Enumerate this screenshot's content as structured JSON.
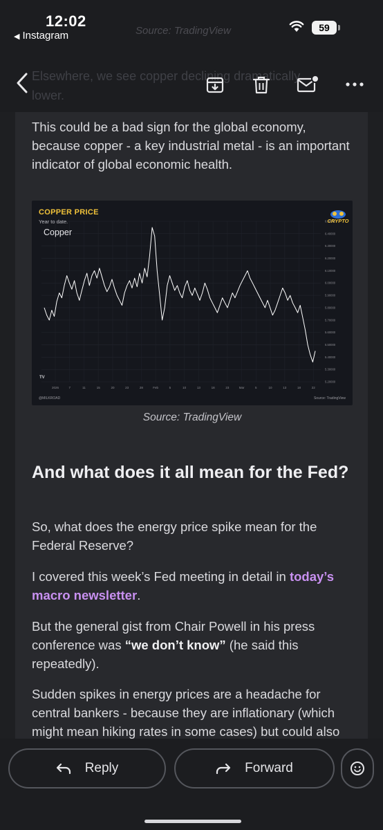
{
  "status_bar": {
    "time": "12:02",
    "back_app": "Instagram",
    "battery": "59",
    "wifi_icon": "wifi-icon"
  },
  "faded_text": {
    "top": "Source: TradingView",
    "line1": "Elsewhere, we see copper declining dramatically",
    "line2": "lower."
  },
  "toolbar": {
    "icons": [
      "back-arrow-icon",
      "archive-icon",
      "trash-icon",
      "mail-unread-icon",
      "more-icon"
    ]
  },
  "article": {
    "p1": "This could be a bad sign for the global economy, because copper - a key industrial metal - is an important indicator of global economic health.",
    "caption": "Source: TradingView",
    "heading": "And what does it all mean for the Fed?",
    "p2": "So, what does the energy price spike mean for the Federal Reserve?",
    "p3_prefix": "I covered this week’s Fed meeting in detail in ",
    "p3_link": "today’s macro newsletter",
    "p3_suffix": ".",
    "p4_prefix": "But the general gist from Chair Powell in his press conference was ",
    "p4_strong": "“we don’t know”",
    "p4_suffix": " (he said this repeatedly).",
    "p5": "Sudden spikes in energy prices are a headache for central bankers - because they are inflationary (which might mean hiking rates in some cases) but could also constrain offers... concern to central"
  },
  "chart": {
    "title": "COPPER PRICE",
    "subtitle": "Year to date.",
    "series_label": "Copper",
    "logo_text": "CRYPTO",
    "handle": "@MILKROAD",
    "source": "Source: TradingView",
    "tv_mark": "TV"
  },
  "chart_data": {
    "type": "line",
    "title": "COPPER PRICE",
    "subtitle": "Year to date.",
    "series": [
      {
        "name": "Copper",
        "values": [
          5.8,
          5.74,
          5.7,
          5.78,
          5.73,
          5.85,
          5.92,
          5.88,
          5.98,
          6.06,
          6.0,
          5.95,
          6.02,
          5.92,
          5.86,
          5.94,
          6.02,
          6.08,
          5.98,
          6.06,
          6.1,
          6.04,
          6.12,
          6.05,
          5.98,
          5.93,
          5.97,
          6.03,
          5.96,
          5.9,
          5.86,
          5.82,
          5.92,
          5.98,
          6.02,
          5.96,
          6.04,
          5.97,
          6.08,
          6.0,
          6.12,
          6.05,
          6.22,
          6.45,
          6.38,
          6.1,
          5.9,
          5.7,
          5.8,
          5.98,
          6.06,
          6.0,
          5.94,
          5.98,
          5.92,
          5.88,
          5.97,
          6.02,
          5.94,
          5.9,
          5.96,
          5.91,
          5.86,
          5.92,
          6.0,
          5.95,
          5.88,
          5.84,
          5.8,
          5.76,
          5.82,
          5.88,
          5.84,
          5.8,
          5.86,
          5.92,
          5.88,
          5.93,
          5.98,
          6.02,
          6.06,
          6.1,
          6.04,
          6.0,
          5.96,
          5.92,
          5.88,
          5.84,
          5.8,
          5.86,
          5.8,
          5.74,
          5.78,
          5.84,
          5.9,
          5.96,
          5.92,
          5.86,
          5.9,
          5.84,
          5.8,
          5.76,
          5.82,
          5.72,
          5.62,
          5.5,
          5.42,
          5.36,
          5.45
        ]
      }
    ],
    "x_tick_labels": [
      "2026",
      "7",
      "11",
      "15",
      "20",
      "23",
      "28",
      "Feb",
      "5",
      "10",
      "13",
      "18",
      "23",
      "Mar",
      "5",
      "10",
      "13",
      "18",
      "22"
    ],
    "y_tick_labels": [
      "6.50000",
      "6.40000",
      "6.30000",
      "6.20000",
      "6.10000",
      "6.00000",
      "5.90000",
      "5.80000",
      "5.70000",
      "5.60000",
      "5.50000",
      "5.40000",
      "5.30000",
      "5.20000"
    ],
    "ylim": [
      5.2,
      6.5
    ],
    "grid": true,
    "line_color": "#ffffff"
  }
}
